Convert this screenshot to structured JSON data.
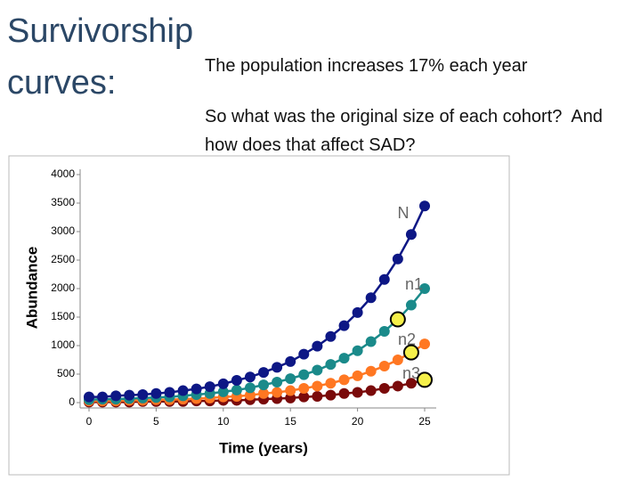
{
  "slide": {
    "title": "Survivorship curves:",
    "text": [
      "The population increases 17% each year",
      "So what was the original size of each cohort?  And how does that affect SAD?"
    ]
  },
  "chart_data": {
    "type": "line",
    "x_label": "Time (years)",
    "y_label": "Abundance",
    "x": [
      0,
      1,
      2,
      3,
      4,
      5,
      6,
      7,
      8,
      9,
      10,
      11,
      12,
      13,
      14,
      15,
      16,
      17,
      18,
      19,
      20,
      21,
      22,
      23,
      24,
      25
    ],
    "series": [
      {
        "name": "N",
        "color": "#0d1785",
        "values": [
          100,
          100,
          120,
          130,
          140,
          160,
          180,
          210,
          240,
          280,
          330,
          390,
          450,
          530,
          620,
          720,
          850,
          990,
          1160,
          1350,
          1580,
          1840,
          2160,
          2520,
          2950,
          3450
        ]
      },
      {
        "name": "n1",
        "color": "#1a8a8a",
        "values": [
          50,
          60,
          60,
          70,
          80,
          90,
          100,
          120,
          140,
          160,
          190,
          220,
          260,
          310,
          360,
          420,
          490,
          570,
          670,
          780,
          910,
          1070,
          1250,
          1460,
          1710,
          2000
        ]
      },
      {
        "name": "n2",
        "color": "#ff7722",
        "values": [
          30,
          30,
          30,
          40,
          40,
          50,
          50,
          60,
          70,
          80,
          100,
          110,
          130,
          160,
          180,
          210,
          250,
          290,
          340,
          400,
          470,
          550,
          640,
          750,
          880,
          1030
        ]
      },
      {
        "name": "n3",
        "color": "#7a0a0a",
        "values": [
          10,
          10,
          10,
          10,
          20,
          20,
          20,
          20,
          30,
          30,
          40,
          40,
          50,
          60,
          70,
          80,
          100,
          110,
          130,
          160,
          180,
          210,
          250,
          290,
          340,
          400
        ]
      }
    ],
    "xlim": [
      0,
      25
    ],
    "xticks": [
      0,
      5,
      10,
      15,
      20,
      25
    ],
    "ylim": [
      0,
      4000
    ],
    "yticks": [
      0,
      500,
      1000,
      1500,
      2000,
      2500,
      3000,
      3500,
      4000
    ]
  }
}
